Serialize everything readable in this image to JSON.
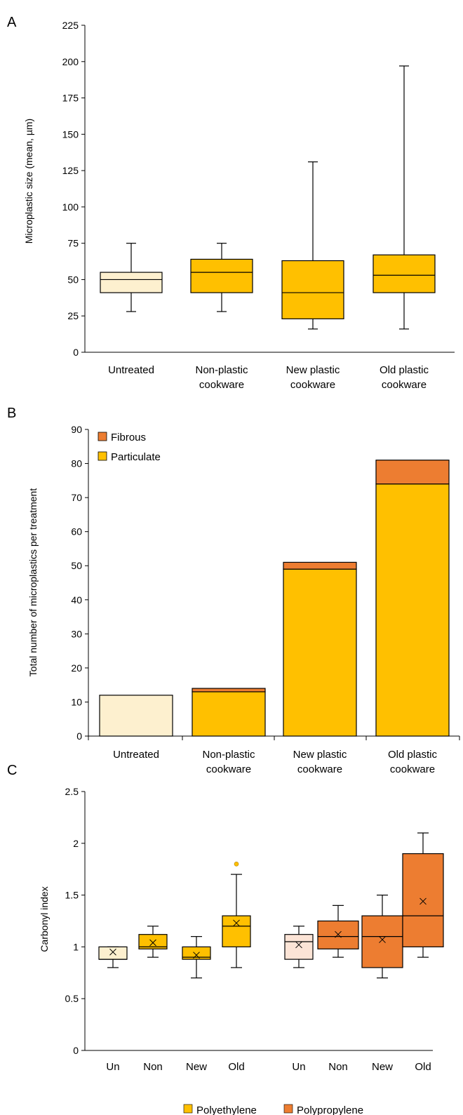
{
  "colors": {
    "untreated_light": "#fdf0cf",
    "polyethylene": "#ffc000",
    "polypropylene": "#ed7d31",
    "pp_untreated_light": "#fce4d6",
    "outline": "#000000"
  },
  "chart_data": [
    {
      "panel": "A",
      "type": "box",
      "ylabel": "Microplastic size (mean, µm)",
      "ylim": [
        0,
        225
      ],
      "yticks": [
        0,
        25,
        50,
        75,
        100,
        125,
        150,
        175,
        200,
        225
      ],
      "categories": [
        "Untreated",
        "Non-plastic cookware",
        "New plastic cookware",
        "Old plastic cookware"
      ],
      "category_lines": [
        [
          "Untreated"
        ],
        [
          "Non-plastic",
          "cookware"
        ],
        [
          "New plastic",
          "cookware"
        ],
        [
          "Old plastic",
          "cookware"
        ]
      ],
      "boxes": [
        {
          "min": 28,
          "q1": 41,
          "median": 50,
          "q3": 55,
          "max": 75
        },
        {
          "min": 28,
          "q1": 41,
          "median": 55,
          "q3": 64,
          "max": 75
        },
        {
          "min": 16,
          "q1": 23,
          "median": 41,
          "q3": 63,
          "max": 131
        },
        {
          "min": 16,
          "q1": 41,
          "median": 53,
          "q3": 67,
          "max": 197
        }
      ]
    },
    {
      "panel": "B",
      "type": "stacked-bar",
      "ylabel": "Total number of microplastics per treatment",
      "ylim": [
        0,
        90
      ],
      "yticks": [
        0,
        10,
        20,
        30,
        40,
        50,
        60,
        70,
        80,
        90
      ],
      "categories": [
        "Untreated",
        "Non-plastic cookware",
        "New plastic cookware",
        "Old plastic cookware"
      ],
      "category_lines": [
        [
          "Untreated"
        ],
        [
          "Non-plastic",
          "cookware"
        ],
        [
          "New plastic",
          "cookware"
        ],
        [
          "Old plastic",
          "cookware"
        ]
      ],
      "series": [
        {
          "name": "Particulate",
          "values": [
            12,
            13,
            49,
            74
          ]
        },
        {
          "name": "Fibrous",
          "values": [
            0,
            1,
            2,
            7
          ]
        }
      ],
      "legend": [
        "Fibrous",
        "Particulate"
      ],
      "legend_position": "top-left"
    },
    {
      "panel": "C",
      "type": "box",
      "ylabel": "Carbonyl index",
      "ylim": [
        0,
        2.5
      ],
      "yticks": [
        "0",
        "0.5",
        "1",
        "1.5",
        "2",
        "2.5"
      ],
      "categories": [
        "Un",
        "Non",
        "New",
        "Old",
        "Un",
        "Non",
        "New",
        "Old"
      ],
      "groups": [
        {
          "name": "Polyethylene",
          "boxes": [
            {
              "min": 0.8,
              "q1": 0.88,
              "median": 0.88,
              "q3": 1.0,
              "max": 1.0,
              "mean": 0.95
            },
            {
              "min": 0.9,
              "q1": 0.98,
              "median": 1.0,
              "q3": 1.12,
              "max": 1.2,
              "mean": 1.04
            },
            {
              "min": 0.7,
              "q1": 0.88,
              "median": 0.9,
              "q3": 1.0,
              "max": 1.1,
              "mean": 0.92
            },
            {
              "min": 0.8,
              "q1": 1.0,
              "median": 1.2,
              "q3": 1.3,
              "max": 1.7,
              "mean": 1.23,
              "outliers": [
                1.8
              ]
            }
          ]
        },
        {
          "name": "Polypropylene",
          "boxes": [
            {
              "min": 0.8,
              "q1": 0.88,
              "median": 1.05,
              "q3": 1.12,
              "max": 1.2,
              "mean": 1.02
            },
            {
              "min": 0.9,
              "q1": 0.98,
              "median": 1.1,
              "q3": 1.25,
              "max": 1.4,
              "mean": 1.12
            },
            {
              "min": 0.7,
              "q1": 0.8,
              "median": 1.1,
              "q3": 1.3,
              "max": 1.5,
              "mean": 1.07
            },
            {
              "min": 0.9,
              "q1": 1.0,
              "median": 1.3,
              "q3": 1.9,
              "max": 2.1,
              "mean": 1.44
            }
          ]
        }
      ],
      "legend": [
        "Polyethylene",
        "Polypropylene"
      ],
      "legend_position": "bottom"
    }
  ]
}
